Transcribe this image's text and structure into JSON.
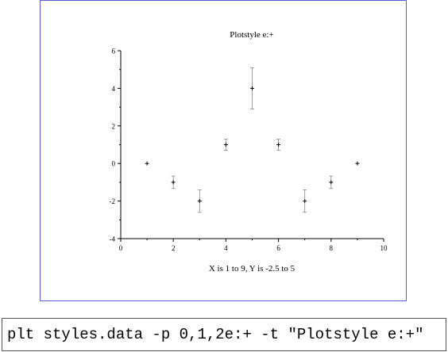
{
  "chart_data": {
    "type": "scatter",
    "title": "Plotstyle e:+",
    "xlabel": "X is 1 to 9, Y is -2.5 to 5",
    "ylabel": "",
    "xlim": [
      0,
      10
    ],
    "ylim": [
      -4,
      6
    ],
    "x_ticks": [
      "0",
      "2",
      "4",
      "6",
      "8",
      "10"
    ],
    "y_ticks": [
      "-4",
      "-2",
      "0",
      "2",
      "4",
      "6"
    ],
    "marker": "+",
    "error_bars": true,
    "x": [
      1,
      2,
      3,
      4,
      5,
      6,
      7,
      8,
      9
    ],
    "y": [
      0,
      -1,
      -2,
      1,
      4,
      1,
      -2,
      -1,
      0
    ],
    "err": [
      0,
      0.33,
      0.6,
      0.3,
      1.1,
      0.3,
      0.6,
      0.33,
      0
    ],
    "grid": false,
    "colors": {
      "frame": "#5b5bd6",
      "marks": "#000000",
      "error_bars": "#888888"
    }
  },
  "command": {
    "text": "plt styles.data -p 0,1,2e:+ -t \"Plotstyle e:+\""
  }
}
